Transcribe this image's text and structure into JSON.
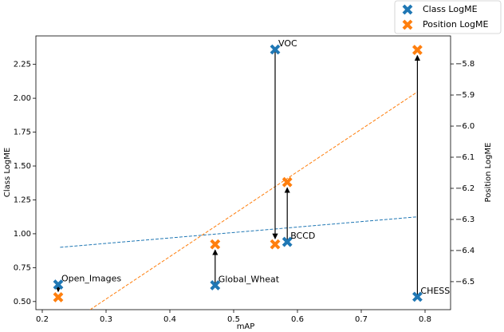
{
  "chart_data": {
    "type": "scatter",
    "x_label": "mAP",
    "y_label": "Class LogME",
    "y2_label": "Position LogME",
    "x": [
      0.225,
      0.471,
      0.565,
      0.584,
      0.788
    ],
    "annotations": [
      "Open_Images",
      "Global_Wheat",
      "VOC",
      "BCCD",
      "CHESS"
    ],
    "series": [
      {
        "name": "Class LogME",
        "color": "#1f77b4",
        "axis": "y",
        "values": [
          0.625,
          0.62,
          2.36,
          0.94,
          0.535
        ]
      },
      {
        "name": "Position LogME",
        "color": "#ff7f0e",
        "axis": "y2",
        "values": [
          -6.55,
          -6.38,
          -6.38,
          -6.18,
          -5.755
        ]
      }
    ],
    "trend_lines": [
      {
        "color": "#1f77b4",
        "axis": "y",
        "x": [
          0.228,
          0.788
        ],
        "values": [
          0.9,
          1.125
        ]
      },
      {
        "color": "#ff7f0e",
        "axis": "y2",
        "x": [
          0.275,
          0.788
        ],
        "values": [
          -6.59,
          -5.89
        ]
      }
    ],
    "xlim": [
      0.19,
      0.84
    ],
    "xticks": [
      0.2,
      0.3,
      0.4,
      0.5,
      0.6,
      0.7,
      0.8
    ],
    "ylim": [
      0.44,
      2.46
    ],
    "yticks": [
      {
        "value": 0.5,
        "label": "0.50"
      },
      {
        "value": 0.75,
        "label": "0.75"
      },
      {
        "value": 1.0,
        "label": "1.00"
      },
      {
        "value": 1.25,
        "label": "1.25"
      },
      {
        "value": 1.5,
        "label": "1.50"
      },
      {
        "value": 1.75,
        "label": "1.75"
      },
      {
        "value": 2.0,
        "label": "2.00"
      },
      {
        "value": 2.25,
        "label": "2.25"
      }
    ],
    "y2lim": [
      -6.59,
      -5.71
    ],
    "y2ticks": [
      {
        "value": -5.8,
        "label": "−5.8"
      },
      {
        "value": -5.9,
        "label": "−5.9"
      },
      {
        "value": -6.0,
        "label": "−6.0"
      },
      {
        "value": -6.1,
        "label": "−6.1"
      },
      {
        "value": -6.2,
        "label": "−6.2"
      },
      {
        "value": -6.3,
        "label": "−6.3"
      },
      {
        "value": -6.4,
        "label": "−6.4"
      },
      {
        "value": -6.5,
        "label": "−6.5"
      }
    ],
    "legend": "upper right"
  }
}
